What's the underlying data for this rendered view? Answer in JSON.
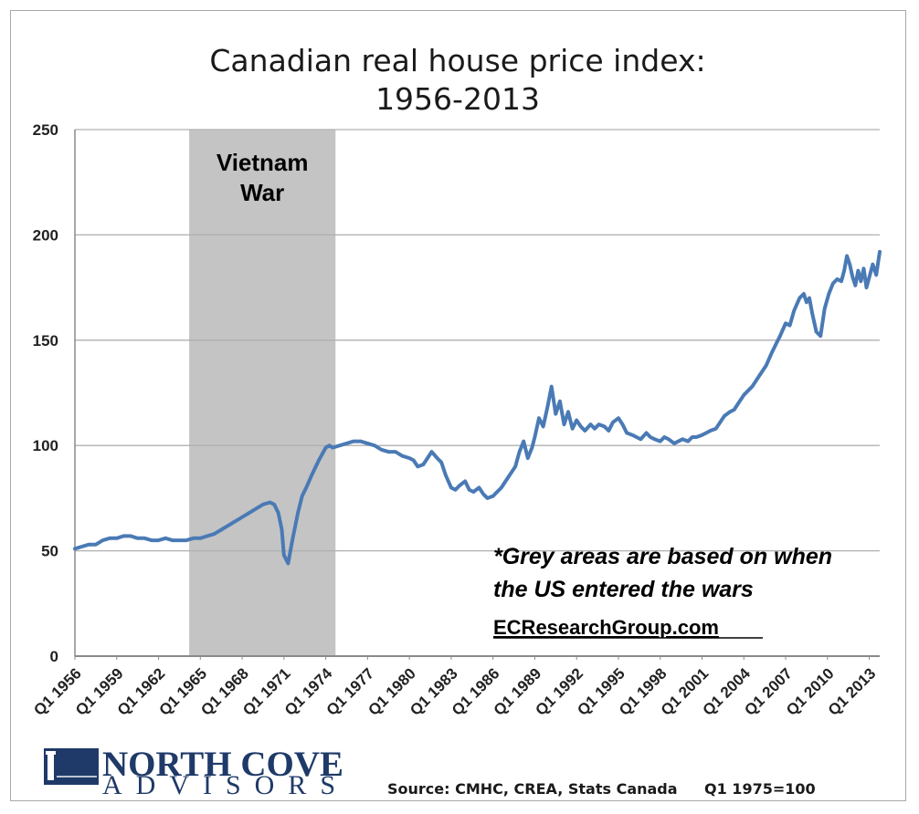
{
  "chart_data": {
    "type": "line",
    "title_line1": "Canadian real house price index:",
    "title_line2": "1956-2013",
    "xlabel": "",
    "ylabel": "",
    "ylim": [
      0,
      250
    ],
    "yticks": [
      0,
      50,
      100,
      150,
      200,
      250
    ],
    "xlim": [
      1956,
      2013.75
    ],
    "xtick_labels": [
      "Q1 1956",
      "Q1 1959",
      "Q1 1962",
      "Q1 1965",
      "Q1 1968",
      "Q1 1971",
      "Q1 1974",
      "Q1 1977",
      "Q1 1980",
      "Q1 1983",
      "Q1 1986",
      "Q1 1989",
      "Q1 1992",
      "Q1 1995",
      "Q1 1998",
      "Q1 2001",
      "Q1 2004",
      "Q1 2007",
      "Q1 2010",
      "Q1 2013"
    ],
    "xtick_years": [
      1956,
      1959,
      1962,
      1965,
      1968,
      1971,
      1974,
      1977,
      1980,
      1983,
      1986,
      1989,
      1992,
      1995,
      1998,
      2001,
      2004,
      2007,
      2010,
      2013
    ],
    "grid": true,
    "line_color": "#4a7ab5",
    "shade_color": "#c4c4c4",
    "shaded_regions": [
      {
        "label_line1": "Vietnam",
        "label_line2": "War",
        "start": 1964.2,
        "end": 1974.7
      }
    ],
    "series": [
      {
        "name": "Canadian real house price index",
        "x": [
          1956.0,
          1956.5,
          1957.0,
          1957.5,
          1958.0,
          1958.5,
          1959.0,
          1959.5,
          1960.0,
          1960.5,
          1961.0,
          1961.5,
          1962.0,
          1962.5,
          1963.0,
          1963.5,
          1964.0,
          1964.5,
          1965.0,
          1965.5,
          1966.0,
          1966.5,
          1967.0,
          1967.5,
          1968.0,
          1968.5,
          1969.0,
          1969.5,
          1970.0,
          1970.3,
          1970.6,
          1970.85,
          1971.0,
          1971.3,
          1971.6,
          1972.0,
          1972.3,
          1972.6,
          1973.0,
          1973.5,
          1974.0,
          1974.25,
          1974.5,
          1975.0,
          1975.5,
          1976.0,
          1976.5,
          1977.0,
          1977.5,
          1978.0,
          1978.5,
          1979.0,
          1979.5,
          1980.0,
          1980.3,
          1980.6,
          1981.0,
          1981.3,
          1981.6,
          1982.0,
          1982.3,
          1982.6,
          1983.0,
          1983.3,
          1983.6,
          1984.0,
          1984.3,
          1984.6,
          1985.0,
          1985.3,
          1985.6,
          1986.0,
          1986.3,
          1986.6,
          1987.0,
          1987.3,
          1987.6,
          1987.9,
          1988.2,
          1988.5,
          1988.8,
          1989.0,
          1989.3,
          1989.6,
          1989.9,
          1990.2,
          1990.5,
          1990.8,
          1991.1,
          1991.4,
          1991.7,
          1992.0,
          1992.3,
          1992.6,
          1993.0,
          1993.3,
          1993.6,
          1994.0,
          1994.3,
          1994.6,
          1995.0,
          1995.3,
          1995.6,
          1996.0,
          1996.3,
          1996.6,
          1997.0,
          1997.3,
          1997.6,
          1998.0,
          1998.3,
          1998.6,
          1999.0,
          1999.3,
          1999.6,
          2000.0,
          2000.3,
          2000.6,
          2001.0,
          2001.3,
          2001.6,
          2002.0,
          2002.3,
          2002.6,
          2003.0,
          2003.3,
          2003.6,
          2004.0,
          2004.3,
          2004.6,
          2005.0,
          2005.3,
          2005.6,
          2006.0,
          2006.3,
          2006.6,
          2007.0,
          2007.3,
          2007.6,
          2008.0,
          2008.3,
          2008.5,
          2008.7,
          2008.9,
          2009.2,
          2009.5,
          2009.8,
          2010.1,
          2010.4,
          2010.7,
          2011.0,
          2011.2,
          2011.4,
          2011.6,
          2011.8,
          2012.0,
          2012.2,
          2012.4,
          2012.6,
          2012.8,
          2013.0,
          2013.25,
          2013.5,
          2013.75
        ],
        "values": [
          51,
          52,
          53,
          53,
          55,
          56,
          56,
          57,
          57,
          56,
          56,
          55,
          55,
          56,
          55,
          55,
          55,
          56,
          56,
          57,
          58,
          60,
          62,
          64,
          66,
          68,
          70,
          72,
          73,
          72,
          68,
          60,
          48,
          44,
          55,
          68,
          76,
          80,
          86,
          93,
          99,
          100,
          99,
          100,
          101,
          102,
          102,
          101,
          100,
          98,
          97,
          97,
          95,
          94,
          93,
          90,
          91,
          94,
          97,
          94,
          92,
          86,
          80,
          79,
          81,
          83,
          79,
          78,
          80,
          77,
          75,
          76,
          78,
          80,
          84,
          87,
          90,
          97,
          102,
          94,
          99,
          104,
          113,
          109,
          118,
          128,
          115,
          121,
          110,
          116,
          108,
          112,
          109,
          107,
          110,
          108,
          110,
          109,
          107,
          111,
          113,
          110,
          106,
          105,
          104,
          103,
          106,
          104,
          103,
          102,
          104,
          103,
          101,
          102,
          103,
          102,
          104,
          104,
          105,
          106,
          107,
          108,
          111,
          114,
          116,
          117,
          120,
          124,
          126,
          128,
          132,
          135,
          138,
          144,
          148,
          152,
          158,
          157,
          164,
          170,
          172,
          168,
          170,
          163,
          154,
          152,
          165,
          172,
          177,
          179,
          178,
          183,
          190,
          186,
          180,
          176,
          183,
          178,
          184,
          175,
          180,
          186,
          181,
          192
        ]
      }
    ],
    "annotation_line1": "*Grey areas are based on when",
    "annotation_line2": "the US entered the wars",
    "link_text": "ECResearchGroup.com"
  },
  "logo": {
    "line1": "NORTH COVE",
    "line2": "ADVISORS"
  },
  "footer": {
    "source": "Source: CMHC, CREA, Stats Canada",
    "base": "Q1 1975=100"
  }
}
